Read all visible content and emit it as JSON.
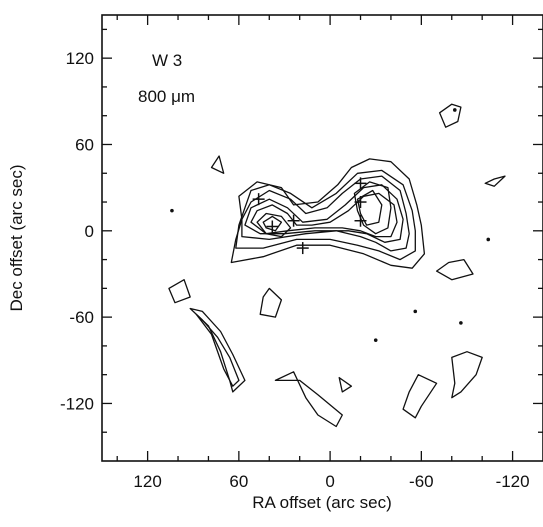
{
  "chart_data": {
    "type": "contour",
    "annotations": {
      "source": "W 3",
      "wavelength": "800 μm"
    },
    "xlabel": "RA offset (arc sec)",
    "ylabel": "Dec offset (arc sec)",
    "x_ticks": [
      {
        "value": 120,
        "label": "120"
      },
      {
        "value": 60,
        "label": "60"
      },
      {
        "value": 0,
        "label": "0"
      },
      {
        "value": -60,
        "label": "-60"
      },
      {
        "value": -120,
        "label": "-120"
      }
    ],
    "y_ticks": [
      {
        "value": 120,
        "label": "120"
      },
      {
        "value": 60,
        "label": "60"
      },
      {
        "value": 0,
        "label": "0"
      },
      {
        "value": -60,
        "label": "-60"
      },
      {
        "value": -120,
        "label": "-120"
      }
    ],
    "xlim": [
      150,
      -140
    ],
    "ylim": [
      -160,
      150
    ],
    "x_reversed": true,
    "grid": false,
    "source_markers": [
      {
        "ra": 47,
        "dec": 22
      },
      {
        "ra": 38,
        "dec": 3
      },
      {
        "ra": 24,
        "dec": 7
      },
      {
        "ra": -20,
        "dec": 33
      },
      {
        "ra": -20,
        "dec": 20
      },
      {
        "ra": -20,
        "dec": 7
      },
      {
        "ra": 18,
        "dec": -12
      }
    ],
    "contours": [
      {
        "level": 1,
        "points": [
          [
            65,
            -22
          ],
          [
            62,
            -6
          ],
          [
            58,
            8
          ],
          [
            60,
            24
          ],
          [
            48,
            34
          ],
          [
            32,
            30
          ],
          [
            24,
            18
          ],
          [
            8,
            20
          ],
          [
            -5,
            32
          ],
          [
            -14,
            44
          ],
          [
            -26,
            50
          ],
          [
            -40,
            48
          ],
          [
            -52,
            36
          ],
          [
            -57,
            18
          ],
          [
            -60,
            4
          ],
          [
            -62,
            -16
          ],
          [
            -54,
            -26
          ],
          [
            -40,
            -24
          ],
          [
            -22,
            -16
          ],
          [
            0,
            -10
          ],
          [
            22,
            -10
          ],
          [
            44,
            -18
          ]
        ]
      },
      {
        "level": 2,
        "points": [
          [
            62,
            -12
          ],
          [
            60,
            4
          ],
          [
            56,
            16
          ],
          [
            52,
            28
          ],
          [
            40,
            32
          ],
          [
            26,
            26
          ],
          [
            12,
            16
          ],
          [
            -4,
            26
          ],
          [
            -18,
            40
          ],
          [
            -34,
            42
          ],
          [
            -48,
            32
          ],
          [
            -54,
            14
          ],
          [
            -56,
            0
          ],
          [
            -56,
            -14
          ],
          [
            -46,
            -20
          ],
          [
            -32,
            -14
          ],
          [
            -18,
            -10
          ],
          [
            0,
            -6
          ],
          [
            22,
            -6
          ],
          [
            44,
            -12
          ]
        ]
      },
      {
        "level": 3,
        "points": [
          [
            58,
            -4
          ],
          [
            58,
            8
          ],
          [
            52,
            20
          ],
          [
            40,
            28
          ],
          [
            26,
            22
          ],
          [
            16,
            12
          ],
          [
            2,
            16
          ],
          [
            -8,
            26
          ],
          [
            -20,
            36
          ],
          [
            -34,
            38
          ],
          [
            -46,
            28
          ],
          [
            -50,
            12
          ],
          [
            -52,
            -2
          ],
          [
            -50,
            -12
          ],
          [
            -40,
            -14
          ],
          [
            -30,
            -8
          ],
          [
            -20,
            -4
          ],
          [
            -4,
            0
          ],
          [
            16,
            -2
          ],
          [
            40,
            -6
          ]
        ]
      },
      {
        "level": 4,
        "points": [
          [
            56,
            4
          ],
          [
            52,
            16
          ],
          [
            40,
            22
          ],
          [
            28,
            16
          ],
          [
            18,
            6
          ],
          [
            2,
            8
          ],
          [
            -10,
            18
          ],
          [
            -22,
            30
          ],
          [
            -34,
            32
          ],
          [
            -44,
            22
          ],
          [
            -48,
            8
          ],
          [
            -46,
            -6
          ],
          [
            -36,
            -8
          ],
          [
            -24,
            -2
          ],
          [
            -12,
            0
          ],
          [
            10,
            0
          ],
          [
            30,
            -2
          ],
          [
            46,
            -2
          ]
        ]
      },
      {
        "level": 5,
        "points": [
          [
            52,
            6
          ],
          [
            48,
            14
          ],
          [
            38,
            18
          ],
          [
            28,
            12
          ],
          [
            22,
            4
          ],
          [
            12,
            4
          ],
          [
            0,
            6
          ],
          [
            -12,
            14
          ],
          [
            -22,
            24
          ],
          [
            -32,
            26
          ],
          [
            -42,
            18
          ],
          [
            -44,
            6
          ],
          [
            -40,
            -4
          ],
          [
            -30,
            -4
          ],
          [
            -20,
            0
          ],
          [
            -8,
            2
          ],
          [
            10,
            2
          ],
          [
            28,
            0
          ],
          [
            42,
            -2
          ]
        ]
      },
      {
        "level": 6,
        "points": [
          [
            48,
            6
          ],
          [
            42,
            12
          ],
          [
            32,
            10
          ],
          [
            26,
            2
          ],
          [
            32,
            -4
          ],
          [
            42,
            -2
          ]
        ]
      },
      {
        "level": 6,
        "points": [
          [
            -16,
            26
          ],
          [
            -26,
            34
          ],
          [
            -38,
            30
          ],
          [
            -40,
            16
          ],
          [
            -38,
            2
          ],
          [
            -30,
            -2
          ],
          [
            -22,
            4
          ],
          [
            -18,
            14
          ]
        ]
      },
      {
        "level": 7,
        "points": [
          [
            44,
            6
          ],
          [
            38,
            10
          ],
          [
            32,
            6
          ],
          [
            36,
            0
          ],
          [
            42,
            2
          ]
        ]
      },
      {
        "level": 7,
        "points": [
          [
            -18,
            22
          ],
          [
            -28,
            28
          ],
          [
            -34,
            18
          ],
          [
            -32,
            6
          ],
          [
            -24,
            4
          ],
          [
            -20,
            12
          ]
        ]
      },
      {
        "level": 1,
        "points": [
          [
            106,
            -40
          ],
          [
            96,
            -34
          ],
          [
            92,
            -46
          ],
          [
            102,
            -50
          ]
        ]
      },
      {
        "level": 1,
        "points": [
          [
            92,
            -54
          ],
          [
            80,
            -66
          ],
          [
            72,
            -84
          ],
          [
            66,
            -104
          ],
          [
            64,
            -112
          ],
          [
            56,
            -104
          ],
          [
            64,
            -86
          ],
          [
            72,
            -70
          ],
          [
            84,
            -56
          ]
        ]
      },
      {
        "level": 2,
        "points": [
          [
            88,
            -58
          ],
          [
            78,
            -72
          ],
          [
            70,
            -96
          ],
          [
            64,
            -108
          ],
          [
            60,
            -104
          ],
          [
            66,
            -88
          ],
          [
            74,
            -74
          ],
          [
            84,
            -62
          ]
        ]
      },
      {
        "level": 1,
        "points": [
          [
            36,
            -104
          ],
          [
            24,
            -98
          ],
          [
            16,
            -116
          ],
          [
            8,
            -128
          ],
          [
            -4,
            -136
          ],
          [
            -8,
            -128
          ],
          [
            8,
            -114
          ],
          [
            20,
            -104
          ]
        ]
      },
      {
        "level": 1,
        "points": [
          [
            40,
            -40
          ],
          [
            32,
            -48
          ],
          [
            36,
            -60
          ],
          [
            46,
            -58
          ],
          [
            44,
            -46
          ]
        ]
      },
      {
        "level": 1,
        "points": [
          [
            -70,
            -106
          ],
          [
            -60,
            -122
          ],
          [
            -56,
            -130
          ],
          [
            -48,
            -124
          ],
          [
            -52,
            -112
          ],
          [
            -58,
            -100
          ]
        ]
      },
      {
        "level": 1,
        "points": [
          [
            -80,
            -88
          ],
          [
            -90,
            -84
          ],
          [
            -100,
            -88
          ],
          [
            -96,
            -100
          ],
          [
            -86,
            -112
          ],
          [
            -80,
            -116
          ],
          [
            -82,
            -106
          ]
        ]
      },
      {
        "level": 1,
        "points": [
          [
            -70,
            -28
          ],
          [
            -80,
            -34
          ],
          [
            -94,
            -30
          ],
          [
            -88,
            -20
          ],
          [
            -78,
            -22
          ]
        ]
      },
      {
        "level": 1,
        "points": [
          [
            -72,
            82
          ],
          [
            -80,
            88
          ],
          [
            -86,
            86
          ],
          [
            -84,
            76
          ],
          [
            -76,
            72
          ]
        ]
      },
      {
        "level": 1,
        "points": [
          [
            -115,
            38
          ],
          [
            -108,
            36
          ],
          [
            -102,
            33
          ],
          [
            -108,
            31
          ]
        ]
      },
      {
        "level": 1,
        "points": [
          [
            78,
            44
          ],
          [
            73,
            52
          ],
          [
            70,
            40
          ]
        ]
      },
      {
        "level": 1,
        "points": [
          [
            -6,
            -102
          ],
          [
            -8,
            -112
          ],
          [
            -14,
            -108
          ]
        ]
      }
    ],
    "point_features": [
      {
        "ra": 104,
        "dec": 14
      },
      {
        "ra": -104,
        "dec": -6
      },
      {
        "ra": -56,
        "dec": -56
      },
      {
        "ra": -86,
        "dec": -64
      },
      {
        "ra": -30,
        "dec": -76
      },
      {
        "ra": -82,
        "dec": 84
      }
    ]
  }
}
